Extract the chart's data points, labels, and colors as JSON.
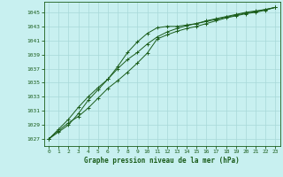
{
  "bg_color": "#c8f0f0",
  "grid_color": "#a8d8d8",
  "line_color": "#1a5c1a",
  "xlabel": "Graphe pression niveau de la mer (hPa)",
  "ylim": [
    1026.0,
    1046.5
  ],
  "xlim": [
    -0.5,
    23.5
  ],
  "yticks": [
    1027,
    1029,
    1031,
    1033,
    1035,
    1037,
    1039,
    1041,
    1043,
    1045
  ],
  "xticks": [
    0,
    1,
    2,
    3,
    4,
    5,
    6,
    7,
    8,
    9,
    10,
    11,
    12,
    13,
    14,
    15,
    16,
    17,
    18,
    19,
    20,
    21,
    22,
    23
  ],
  "line1": [
    1027.0,
    1028.2,
    1029.3,
    1030.2,
    1031.4,
    1032.8,
    1034.2,
    1035.3,
    1036.5,
    1037.8,
    1039.2,
    1041.2,
    1041.8,
    1042.3,
    1042.7,
    1043.0,
    1043.4,
    1043.8,
    1044.2,
    1044.5,
    1044.8,
    1045.0,
    1045.3,
    1045.7
  ],
  "line2": [
    1027.0,
    1028.4,
    1029.8,
    1031.5,
    1033.0,
    1034.3,
    1035.5,
    1037.0,
    1038.3,
    1039.3,
    1040.5,
    1041.5,
    1042.2,
    1042.7,
    1043.1,
    1043.4,
    1043.8,
    1044.1,
    1044.4,
    1044.7,
    1045.0,
    1045.2,
    1045.4,
    1045.7
  ],
  "line3": [
    1027.0,
    1028.0,
    1029.0,
    1030.6,
    1032.5,
    1034.0,
    1035.5,
    1037.3,
    1039.3,
    1040.8,
    1042.0,
    1042.8,
    1043.0,
    1043.0,
    1043.2,
    1043.4,
    1043.7,
    1044.0,
    1044.3,
    1044.6,
    1044.9,
    1045.1,
    1045.4,
    1045.7
  ]
}
